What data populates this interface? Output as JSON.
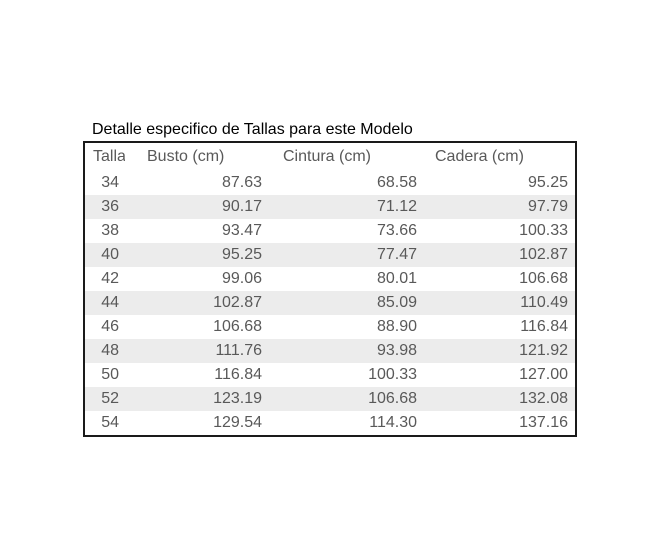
{
  "page": {
    "background_color": "#ffffff"
  },
  "chart_data": {
    "type": "table",
    "title": "Detalle especifico de Tallas para este Modelo",
    "columns": [
      "Talla",
      "Busto (cm)",
      "Cintura (cm)",
      "Cadera (cm)"
    ],
    "rows": [
      [
        "34",
        "87.63",
        "68.58",
        "95.25"
      ],
      [
        "36",
        "90.17",
        "71.12",
        "97.79"
      ],
      [
        "38",
        "93.47",
        "73.66",
        "100.33"
      ],
      [
        "40",
        "95.25",
        "77.47",
        "102.87"
      ],
      [
        "42",
        "99.06",
        "80.01",
        "106.68"
      ],
      [
        "44",
        "102.87",
        "85.09",
        "110.49"
      ],
      [
        "46",
        "106.68",
        "88.90",
        "116.84"
      ],
      [
        "48",
        "111.76",
        "93.98",
        "121.92"
      ],
      [
        "50",
        "116.84",
        "100.33",
        "127.00"
      ],
      [
        "52",
        "123.19",
        "106.68",
        "132.08"
      ],
      [
        "54",
        "129.54",
        "114.30",
        "137.16"
      ]
    ],
    "layout": {
      "alternating_row_shading": true,
      "first_data_row_shaded": false,
      "header_separator_line": false,
      "numeric_alignment": "right",
      "header_alignment": "left"
    },
    "colors": {
      "title_text": "#000000",
      "table_text": "#595959",
      "alt_row_background": "#ececec",
      "table_border": "#1a1a1a",
      "background": "#ffffff"
    }
  }
}
